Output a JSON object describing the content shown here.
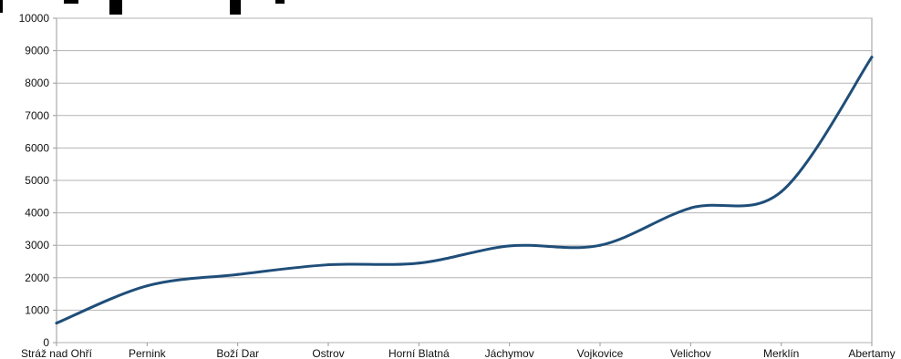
{
  "chart_data": {
    "type": "line",
    "title": "",
    "xlabel": "",
    "ylabel": "",
    "categories": [
      "Stráž nad Ohří",
      "Pernink",
      "Boží Dar",
      "Ostrov",
      "Horní Blatná",
      "Jáchymov",
      "Vojkovice",
      "Velichov",
      "Merklín",
      "Abertamy"
    ],
    "x_tick_labels": [
      "Stráž nad Ohří",
      "Pernink",
      "Boží Dar",
      "Ostrov",
      "Horní Blatná",
      "Jáchymov",
      "Vojkovice",
      "Velichov",
      "Merklín",
      "Abertamy"
    ],
    "y_ticks": [
      0,
      1000,
      2000,
      3000,
      4000,
      5000,
      6000,
      7000,
      8000,
      9000,
      10000
    ],
    "ylim": [
      0,
      10000
    ],
    "grid": true,
    "legend": "none",
    "series": [
      {
        "values": [
          600,
          1750,
          2100,
          2400,
          2450,
          2980,
          3000,
          4150,
          4650,
          8800
        ],
        "color": "#1f4e79"
      }
    ]
  }
}
